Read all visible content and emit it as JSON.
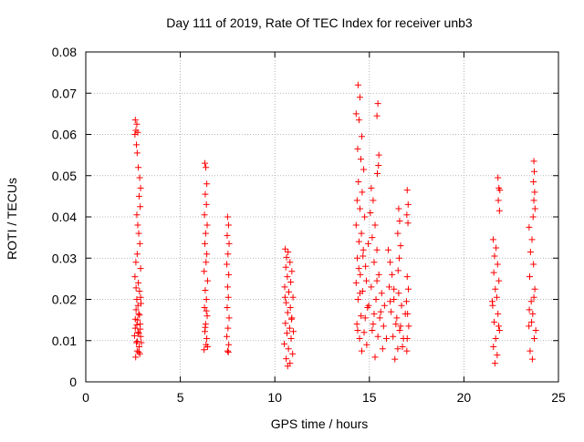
{
  "chart_data": {
    "type": "scatter",
    "title": "Day 111 of 2019, Rate Of TEC Index for receiver unb3",
    "xlabel": "GPS time / hours",
    "ylabel": "ROTI / TECUs",
    "xlim": [
      0,
      25
    ],
    "ylim": [
      0,
      0.08
    ],
    "x_ticks": [
      0,
      5,
      10,
      15,
      20,
      25
    ],
    "x_tick_labels": [
      "0",
      "5",
      "10",
      "15",
      "20",
      "25"
    ],
    "y_ticks": [
      0,
      0.01,
      0.02,
      0.03,
      0.04,
      0.05,
      0.06,
      0.07,
      0.08
    ],
    "y_tick_labels": [
      "0",
      "0.01",
      "0.02",
      "0.03",
      "0.04",
      "0.05",
      "0.06",
      "0.07",
      "0.08"
    ],
    "grid": true,
    "marker": "plus",
    "color": "#ff0000",
    "series": [
      {
        "points": [
          [
            2.62,
            0.0635
          ],
          [
            2.7,
            0.0625
          ],
          [
            2.65,
            0.061
          ],
          [
            2.6,
            0.06
          ],
          [
            2.75,
            0.0605
          ],
          [
            2.68,
            0.0575
          ],
          [
            2.72,
            0.0555
          ],
          [
            2.78,
            0.052
          ],
          [
            2.85,
            0.0495
          ],
          [
            2.9,
            0.047
          ],
          [
            2.82,
            0.045
          ],
          [
            2.88,
            0.0425
          ],
          [
            2.7,
            0.0405
          ],
          [
            2.75,
            0.038
          ],
          [
            2.8,
            0.036
          ],
          [
            2.86,
            0.0335
          ],
          [
            2.72,
            0.031
          ],
          [
            2.65,
            0.029
          ],
          [
            2.9,
            0.0275
          ],
          [
            2.6,
            0.0255
          ],
          [
            2.78,
            0.024
          ],
          [
            2.84,
            0.022
          ],
          [
            2.7,
            0.02
          ],
          [
            2.92,
            0.019
          ],
          [
            2.66,
            0.0175
          ],
          [
            2.8,
            0.0165
          ],
          [
            2.74,
            0.015
          ],
          [
            2.88,
            0.014
          ],
          [
            2.62,
            0.013
          ],
          [
            2.76,
            0.012
          ],
          [
            2.9,
            0.011
          ],
          [
            2.68,
            0.0095
          ],
          [
            2.82,
            0.0085
          ],
          [
            2.72,
            0.0075
          ],
          [
            2.86,
            0.0068
          ],
          [
            2.64,
            0.006
          ],
          [
            2.8,
            0.0072
          ],
          [
            2.94,
            0.0095
          ],
          [
            2.58,
            0.0112
          ],
          [
            2.7,
            0.0138
          ],
          [
            2.84,
            0.0162
          ],
          [
            2.76,
            0.0185
          ],
          [
            2.9,
            0.0205
          ],
          [
            2.66,
            0.0228
          ],
          [
            2.8,
            0.0118
          ],
          [
            2.72,
            0.0098
          ],
          [
            2.88,
            0.0128
          ],
          [
            2.62,
            0.0152
          ],
          [
            6.3,
            0.053
          ],
          [
            6.35,
            0.052
          ],
          [
            6.4,
            0.048
          ],
          [
            6.32,
            0.0455
          ],
          [
            6.38,
            0.043
          ],
          [
            6.28,
            0.0405
          ],
          [
            6.42,
            0.038
          ],
          [
            6.34,
            0.036
          ],
          [
            6.3,
            0.0335
          ],
          [
            6.4,
            0.031
          ],
          [
            6.36,
            0.029
          ],
          [
            6.26,
            0.0268
          ],
          [
            6.44,
            0.0245
          ],
          [
            6.32,
            0.0222
          ],
          [
            6.38,
            0.02
          ],
          [
            6.28,
            0.018
          ],
          [
            6.42,
            0.016
          ],
          [
            6.34,
            0.014
          ],
          [
            6.3,
            0.0122
          ],
          [
            6.4,
            0.0105
          ],
          [
            6.36,
            0.009
          ],
          [
            6.26,
            0.0078
          ],
          [
            6.44,
            0.0085
          ],
          [
            6.32,
            0.0132
          ],
          [
            6.38,
            0.0172
          ],
          [
            7.5,
            0.04
          ],
          [
            7.55,
            0.038
          ],
          [
            7.48,
            0.0355
          ],
          [
            7.58,
            0.0335
          ],
          [
            7.52,
            0.031
          ],
          [
            7.46,
            0.0285
          ],
          [
            7.56,
            0.026
          ],
          [
            7.5,
            0.023
          ],
          [
            7.54,
            0.0205
          ],
          [
            7.48,
            0.018
          ],
          [
            7.58,
            0.0155
          ],
          [
            7.52,
            0.013
          ],
          [
            7.46,
            0.011
          ],
          [
            7.56,
            0.009
          ],
          [
            7.5,
            0.0075
          ],
          [
            7.54,
            0.0072
          ],
          [
            10.55,
            0.0322
          ],
          [
            10.7,
            0.0315
          ],
          [
            10.62,
            0.0302
          ],
          [
            10.8,
            0.029
          ],
          [
            10.58,
            0.0278
          ],
          [
            10.9,
            0.0268
          ],
          [
            10.66,
            0.0255
          ],
          [
            10.84,
            0.0242
          ],
          [
            10.52,
            0.023
          ],
          [
            10.74,
            0.0218
          ],
          [
            10.96,
            0.0205
          ],
          [
            10.6,
            0.0192
          ],
          [
            10.82,
            0.018
          ],
          [
            10.68,
            0.0168
          ],
          [
            10.9,
            0.0155
          ],
          [
            10.56,
            0.0142
          ],
          [
            10.78,
            0.013
          ],
          [
            10.64,
            0.0118
          ],
          [
            10.86,
            0.0105
          ],
          [
            10.5,
            0.0092
          ],
          [
            10.72,
            0.008
          ],
          [
            10.94,
            0.0068
          ],
          [
            10.6,
            0.0056
          ],
          [
            10.8,
            0.0045
          ],
          [
            10.68,
            0.0038
          ],
          [
            10.88,
            0.0152
          ],
          [
            10.54,
            0.0205
          ],
          [
            10.98,
            0.0122
          ],
          [
            14.4,
            0.072
          ],
          [
            14.5,
            0.069
          ],
          [
            14.3,
            0.065
          ],
          [
            14.45,
            0.0635
          ],
          [
            14.6,
            0.0595
          ],
          [
            14.38,
            0.0565
          ],
          [
            14.55,
            0.054
          ],
          [
            14.7,
            0.0515
          ],
          [
            14.42,
            0.0485
          ],
          [
            14.62,
            0.046
          ],
          [
            14.35,
            0.044
          ],
          [
            14.5,
            0.042
          ],
          [
            14.75,
            0.04
          ],
          [
            14.3,
            0.038
          ],
          [
            14.58,
            0.036
          ],
          [
            14.45,
            0.034
          ],
          [
            14.68,
            0.032
          ],
          [
            14.36,
            0.03
          ],
          [
            14.8,
            0.028
          ],
          [
            14.52,
            0.026
          ],
          [
            14.3,
            0.024
          ],
          [
            14.64,
            0.022
          ],
          [
            14.4,
            0.02
          ],
          [
            14.9,
            0.018
          ],
          [
            14.56,
            0.016
          ],
          [
            14.34,
            0.014
          ],
          [
            14.72,
            0.012
          ],
          [
            14.48,
            0.0105
          ],
          [
            14.86,
            0.009
          ],
          [
            14.6,
            0.0075
          ],
          [
            14.38,
            0.0125
          ],
          [
            14.78,
            0.0155
          ],
          [
            14.96,
            0.0185
          ],
          [
            14.5,
            0.0215
          ],
          [
            14.84,
            0.0245
          ],
          [
            14.44,
            0.0275
          ],
          [
            14.66,
            0.0305
          ],
          [
            14.94,
            0.0335
          ],
          [
            15.1,
            0.047
          ],
          [
            15.2,
            0.044
          ],
          [
            15.05,
            0.041
          ],
          [
            15.3,
            0.038
          ],
          [
            15.15,
            0.035
          ],
          [
            15.4,
            0.032
          ],
          [
            15.25,
            0.029
          ],
          [
            15.5,
            0.026
          ],
          [
            15.1,
            0.023
          ],
          [
            15.35,
            0.02
          ],
          [
            15.6,
            0.017
          ],
          [
            15.2,
            0.014
          ],
          [
            15.45,
            0.011
          ],
          [
            15.7,
            0.008
          ],
          [
            15.3,
            0.006
          ],
          [
            15.55,
            0.0155
          ],
          [
            15.8,
            0.0185
          ],
          [
            15.15,
            0.0125
          ],
          [
            15.65,
            0.0215
          ],
          [
            15.4,
            0.0245
          ],
          [
            15.9,
            0.0105
          ],
          [
            15.25,
            0.0165
          ],
          [
            15.75,
            0.0135
          ],
          [
            15.45,
            0.0675
          ],
          [
            15.4,
            0.0645
          ],
          [
            15.5,
            0.055
          ],
          [
            15.48,
            0.0525
          ],
          [
            15.42,
            0.0505
          ],
          [
            16.0,
            0.032
          ],
          [
            16.1,
            0.029
          ],
          [
            16.2,
            0.026
          ],
          [
            16.05,
            0.023
          ],
          [
            16.3,
            0.02
          ],
          [
            16.15,
            0.017
          ],
          [
            16.4,
            0.014
          ],
          [
            16.25,
            0.011
          ],
          [
            16.5,
            0.008
          ],
          [
            16.35,
            0.0055
          ],
          [
            16.6,
            0.0125
          ],
          [
            16.45,
            0.0155
          ],
          [
            16.7,
            0.0185
          ],
          [
            16.55,
            0.0215
          ],
          [
            16.8,
            0.0105
          ],
          [
            16.65,
            0.0135
          ],
          [
            16.9,
            0.0165
          ],
          [
            16.75,
            0.0085
          ],
          [
            16.1,
            0.0195
          ],
          [
            16.3,
            0.0225
          ],
          [
            16.55,
            0.042
          ],
          [
            16.6,
            0.039
          ],
          [
            16.5,
            0.036
          ],
          [
            16.65,
            0.033
          ],
          [
            16.58,
            0.03
          ],
          [
            16.52,
            0.027
          ],
          [
            17.0,
            0.0465
          ],
          [
            17.05,
            0.043
          ],
          [
            16.98,
            0.0405
          ],
          [
            17.04,
            0.0385
          ],
          [
            17.0,
            0.0255
          ],
          [
            17.06,
            0.0225
          ],
          [
            16.96,
            0.0195
          ],
          [
            17.02,
            0.0165
          ],
          [
            17.08,
            0.0135
          ],
          [
            17.0,
            0.0105
          ],
          [
            16.98,
            0.0075
          ],
          [
            21.55,
            0.0345
          ],
          [
            21.7,
            0.0325
          ],
          [
            21.62,
            0.0305
          ],
          [
            21.78,
            0.0285
          ],
          [
            21.58,
            0.0265
          ],
          [
            21.85,
            0.0245
          ],
          [
            21.66,
            0.0225
          ],
          [
            21.74,
            0.0205
          ],
          [
            21.52,
            0.0185
          ],
          [
            21.8,
            0.0165
          ],
          [
            21.6,
            0.0145
          ],
          [
            21.88,
            0.0125
          ],
          [
            21.68,
            0.0105
          ],
          [
            21.56,
            0.0085
          ],
          [
            21.76,
            0.0065
          ],
          [
            21.64,
            0.0045
          ],
          [
            21.84,
            0.0135
          ],
          [
            21.5,
            0.0195
          ],
          [
            21.8,
            0.0495
          ],
          [
            21.85,
            0.047
          ],
          [
            21.9,
            0.0465
          ],
          [
            21.82,
            0.044
          ],
          [
            21.88,
            0.0415
          ],
          [
            23.45,
            0.0375
          ],
          [
            23.6,
            0.0345
          ],
          [
            23.52,
            0.0315
          ],
          [
            23.68,
            0.0285
          ],
          [
            23.48,
            0.0255
          ],
          [
            23.75,
            0.0225
          ],
          [
            23.56,
            0.0195
          ],
          [
            23.64,
            0.0165
          ],
          [
            23.44,
            0.0135
          ],
          [
            23.72,
            0.0105
          ],
          [
            23.5,
            0.0075
          ],
          [
            23.62,
            0.0055
          ],
          [
            23.8,
            0.0125
          ],
          [
            23.46,
            0.0175
          ],
          [
            23.7,
            0.0205
          ],
          [
            23.58,
            0.0145
          ],
          [
            23.7,
            0.0535
          ],
          [
            23.72,
            0.051
          ],
          [
            23.68,
            0.0485
          ],
          [
            23.74,
            0.046
          ],
          [
            23.7,
            0.044
          ],
          [
            23.76,
            0.042
          ],
          [
            23.66,
            0.04
          ]
        ]
      }
    ]
  }
}
